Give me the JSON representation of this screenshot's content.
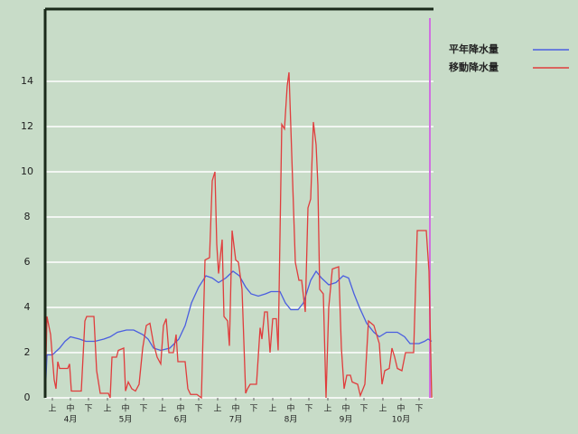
{
  "chart_data": {
    "type": "line",
    "xlim": [
      0,
      215
    ],
    "ylim": [
      0,
      17.2
    ],
    "yticks": [
      0,
      2,
      4,
      6,
      8,
      10,
      12,
      14
    ],
    "xticks": [
      {
        "value": 4,
        "label": "上"
      },
      {
        "value": 14,
        "label": "中"
      },
      {
        "value": 24,
        "label": "下"
      },
      {
        "value": 34.5,
        "label": "上"
      },
      {
        "value": 44.5,
        "label": "中"
      },
      {
        "value": 54.5,
        "label": "下"
      },
      {
        "value": 65,
        "label": "上"
      },
      {
        "value": 75,
        "label": "中"
      },
      {
        "value": 85,
        "label": "下"
      },
      {
        "value": 95.5,
        "label": "上"
      },
      {
        "value": 105.5,
        "label": "中"
      },
      {
        "value": 115.5,
        "label": "下"
      },
      {
        "value": 126,
        "label": "上"
      },
      {
        "value": 136,
        "label": "中"
      },
      {
        "value": 146,
        "label": "下"
      },
      {
        "value": 156.5,
        "label": "上"
      },
      {
        "value": 166.5,
        "label": "中"
      },
      {
        "value": 176.5,
        "label": "下"
      },
      {
        "value": 187,
        "label": "上"
      },
      {
        "value": 197,
        "label": "中"
      },
      {
        "value": 207,
        "label": "下"
      }
    ],
    "month_labels": [
      {
        "value": 14,
        "label": "4月"
      },
      {
        "value": 44.5,
        "label": "5月"
      },
      {
        "value": 75,
        "label": "6月"
      },
      {
        "value": 105.5,
        "label": "7月"
      },
      {
        "value": 136,
        "label": "8月"
      },
      {
        "value": 166.5,
        "label": "9月"
      },
      {
        "value": 197,
        "label": "10月"
      }
    ],
    "grid": true,
    "series": [
      {
        "name": "平年降水量",
        "color": "#4a5ee0",
        "x": [
          0,
          1,
          4,
          8,
          11,
          14,
          19,
          22.5,
          27.5,
          32.5,
          36,
          40,
          45,
          49,
          54,
          57,
          60,
          64,
          69,
          74,
          77.5,
          81,
          85,
          89,
          92.5,
          96,
          100,
          104,
          107.5,
          111,
          114,
          118,
          122,
          125,
          130,
          133,
          136,
          140,
          143,
          147,
          150,
          153,
          157,
          161,
          165,
          168,
          171,
          174,
          178,
          182,
          185,
          189,
          195,
          199,
          202,
          207,
          210,
          212,
          214
        ],
        "values": [
          0,
          1.9,
          1.9,
          2.2,
          2.5,
          2.7,
          2.6,
          2.5,
          2.5,
          2.6,
          2.7,
          2.9,
          3.0,
          3.0,
          2.8,
          2.6,
          2.2,
          2.1,
          2.2,
          2.6,
          3.2,
          4.2,
          4.9,
          5.4,
          5.3,
          5.1,
          5.3,
          5.6,
          5.4,
          4.9,
          4.6,
          4.5,
          4.6,
          4.7,
          4.7,
          4.2,
          3.9,
          3.9,
          4.2,
          5.2,
          5.6,
          5.3,
          5.0,
          5.1,
          5.4,
          5.3,
          4.6,
          4.0,
          3.3,
          2.9,
          2.7,
          2.9,
          2.9,
          2.7,
          2.4,
          2.4,
          2.5,
          2.6,
          2.5
        ]
      },
      {
        "name": "移動降水量",
        "color": "#e03c3c",
        "x": [
          0,
          1,
          3,
          5,
          6,
          7,
          8,
          12.5,
          13.5,
          14.5,
          20,
          22,
          23,
          27,
          28.5,
          30.5,
          35,
          36,
          37,
          39.5,
          40.5,
          43.5,
          44.5,
          46,
          48,
          50,
          52,
          54,
          56,
          58,
          60,
          62,
          64,
          65.5,
          67,
          68.5,
          71,
          72.5,
          73.5,
          77.5,
          79,
          80.5,
          84,
          86.5,
          88.5,
          91,
          92.5,
          94,
          95,
          96,
          98,
          99,
          101,
          102,
          103.5,
          105.5,
          107,
          109,
          111,
          112,
          113.5,
          117,
          119,
          120,
          121.5,
          123,
          124.5,
          126,
          128,
          129,
          131,
          132.5,
          134,
          135,
          137,
          138.5,
          140.5,
          142,
          144,
          145.5,
          147,
          148.5,
          150,
          151,
          152,
          154,
          155.5,
          157,
          159,
          162.5,
          164,
          165.5,
          167,
          169,
          170,
          173,
          174.5,
          177,
          179,
          182,
          185,
          186.5,
          188,
          190.5,
          192,
          193.5,
          195,
          197.5,
          199.5,
          204,
          206,
          211,
          212.5,
          214
        ],
        "values": [
          0,
          3.6,
          2.8,
          0.8,
          0.4,
          1.6,
          1.3,
          1.3,
          1.5,
          0.3,
          0.3,
          3.4,
          3.6,
          3.6,
          1.2,
          0.2,
          0.2,
          0,
          1.8,
          1.8,
          2.1,
          2.2,
          0.3,
          0.7,
          0.4,
          0.3,
          0.6,
          2.2,
          3.2,
          3.3,
          2.4,
          1.8,
          1.5,
          3.2,
          3.5,
          2.0,
          2.0,
          2.8,
          1.6,
          1.6,
          0.4,
          0.15,
          0.15,
          0,
          6.1,
          6.2,
          9.6,
          10.0,
          6.8,
          5.5,
          7.0,
          3.6,
          3.4,
          2.3,
          7.4,
          6.1,
          6.0,
          4.8,
          0.2,
          0.4,
          0.6,
          0.6,
          3.1,
          2.6,
          3.8,
          3.8,
          2.0,
          3.5,
          3.5,
          2.1,
          12.1,
          11.9,
          13.8,
          14.4,
          9.6,
          6.0,
          5.2,
          5.2,
          3.8,
          8.4,
          8.8,
          12.2,
          11.2,
          9.4,
          4.8,
          4.6,
          0,
          4.0,
          5.7,
          5.8,
          2.2,
          0.4,
          1.0,
          1.0,
          0.7,
          0.6,
          0.1,
          0.6,
          3.4,
          3.2,
          2.4,
          0.6,
          1.2,
          1.3,
          2.2,
          1.8,
          1.3,
          1.2,
          2.0,
          2.0,
          7.4,
          7.4,
          5.6,
          0
        ]
      }
    ]
  }
}
